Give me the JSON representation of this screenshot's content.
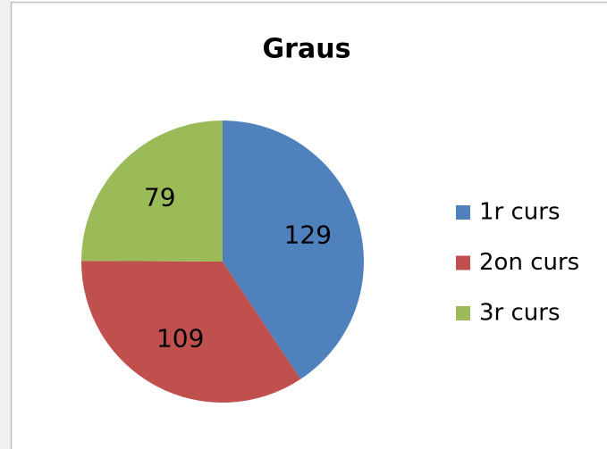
{
  "chart_data": {
    "type": "pie",
    "title": "Graus",
    "categories": [
      "1r curs",
      "2on curs",
      "3r curs"
    ],
    "values": [
      129,
      109,
      79
    ],
    "colors": [
      "#4f81bd",
      "#c0504d",
      "#9bbb59"
    ],
    "legend": "right"
  }
}
